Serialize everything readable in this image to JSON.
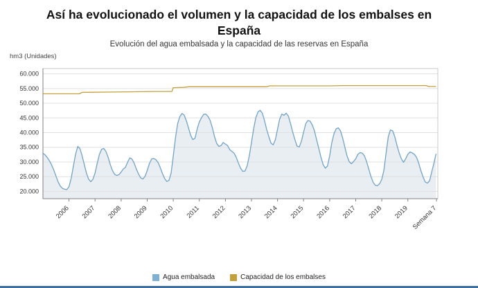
{
  "header": {
    "title": "Así ha evolucionado el volumen y la capacidad de los embalses en España",
    "subtitle": "Evolución del agua embalsada y la capacidad de las reservas en España",
    "y_unit_label": "hm3 (Unidades)"
  },
  "legend": [
    {
      "label": "Agua embalsada",
      "color": "#7fb1d4"
    },
    {
      "label": "Capacidad de los embalses",
      "color": "#c3a03c"
    }
  ],
  "colors": {
    "agua_line": "#6fa3c7",
    "agua_fill": "#e9eef3",
    "capacidad_line": "#c3a03c",
    "grid": "#e0e0e0",
    "frame": "#c9c9c9",
    "axis": "#808080",
    "tick_text": "#333333",
    "accent_bar": "#3a6ea5"
  },
  "chart_data": {
    "type": "line",
    "title": "Así ha evolucionado el volumen y la capacidad de los embalses en España",
    "subtitle": "Evolución del agua embalsada y la capacidad de las reservas en España",
    "ylabel": "hm3 (Unidades)",
    "grid": true,
    "legend_position": "bottom",
    "units_note": "values in thousands of hm3",
    "ylim": [
      17.5,
      61.8
    ],
    "xlim": [
      2005.0,
      2020.15
    ],
    "y_ticks": [
      {
        "v": 20,
        "label": "20.000"
      },
      {
        "v": 25,
        "label": "25.000"
      },
      {
        "v": 30,
        "label": "30.000"
      },
      {
        "v": 35,
        "label": "35.000"
      },
      {
        "v": 40,
        "label": "40.000"
      },
      {
        "v": 45,
        "label": "45.000"
      },
      {
        "v": 50,
        "label": "50.000"
      },
      {
        "v": 55,
        "label": "55.000"
      },
      {
        "v": 60,
        "label": "60.000"
      }
    ],
    "x_ticks": [
      {
        "v": 2006,
        "label": "2006"
      },
      {
        "v": 2007,
        "label": "2007"
      },
      {
        "v": 2008,
        "label": "2008"
      },
      {
        "v": 2009,
        "label": "2009"
      },
      {
        "v": 2010,
        "label": "2010"
      },
      {
        "v": 2011,
        "label": "2011"
      },
      {
        "v": 2012,
        "label": "2012"
      },
      {
        "v": 2013,
        "label": "2013"
      },
      {
        "v": 2014,
        "label": "2014"
      },
      {
        "v": 2015,
        "label": "2015"
      },
      {
        "v": 2016,
        "label": "2016"
      },
      {
        "v": 2017,
        "label": "2017"
      },
      {
        "v": 2018,
        "label": "2018"
      },
      {
        "v": 2019,
        "label": "2019"
      },
      {
        "v": 2020.1,
        "label": "Semana 7"
      }
    ],
    "series": [
      {
        "name": "Agua embalsada",
        "style": "area-line",
        "color": "#6fa3c7",
        "fill": "#e9eef3",
        "x_start": 2005.0,
        "x_step": 0.0833333,
        "values": [
          33.0,
          32.4,
          31.5,
          30.4,
          29.0,
          27.2,
          25.2,
          23.2,
          21.8,
          21.0,
          20.7,
          20.6,
          21.6,
          24.5,
          28.5,
          32.5,
          35.3,
          34.6,
          32.2,
          29.2,
          26.3,
          24.2,
          23.3,
          24.1,
          26.2,
          29.6,
          32.6,
          34.3,
          34.6,
          33.6,
          31.6,
          29.1,
          27.1,
          25.8,
          25.4,
          25.7,
          26.6,
          27.6,
          28.2,
          30.0,
          31.4,
          31.0,
          29.6,
          27.6,
          25.9,
          24.6,
          24.2,
          25.1,
          27.1,
          29.4,
          31.0,
          31.2,
          30.8,
          29.8,
          28.1,
          26.1,
          24.4,
          23.4,
          23.7,
          26.2,
          32.0,
          38.2,
          43.0,
          45.4,
          46.5,
          46.0,
          44.1,
          41.6,
          39.1,
          37.6,
          38.1,
          41.2,
          43.6,
          45.1,
          46.2,
          46.3,
          45.5,
          44.1,
          41.6,
          38.6,
          36.3,
          35.3,
          35.6,
          36.6,
          36.1,
          35.6,
          34.2,
          33.6,
          33.0,
          31.6,
          29.6,
          27.9,
          26.8,
          26.9,
          28.6,
          32.1,
          36.6,
          41.2,
          45.1,
          47.0,
          47.6,
          46.6,
          44.1,
          41.1,
          38.6,
          36.4,
          35.8,
          37.6,
          41.1,
          44.6,
          46.3,
          45.9,
          46.6,
          45.6,
          43.1,
          40.1,
          37.6,
          35.4,
          35.1,
          37.1,
          40.1,
          43.1,
          44.1,
          43.9,
          42.6,
          40.6,
          37.6,
          34.6,
          31.6,
          29.1,
          27.9,
          28.6,
          32.1,
          36.6,
          39.6,
          41.3,
          41.6,
          40.6,
          38.1,
          35.1,
          32.1,
          30.1,
          29.4,
          30.1,
          31.1,
          32.6,
          33.2,
          33.0,
          32.1,
          30.1,
          27.6,
          25.1,
          23.1,
          22.1,
          21.9,
          22.6,
          24.1,
          27.2,
          33.1,
          38.6,
          40.9,
          40.6,
          38.6,
          35.6,
          33.1,
          31.1,
          29.9,
          31.1,
          32.6,
          33.4,
          33.1,
          32.6,
          31.6,
          29.6,
          27.1,
          24.9,
          23.2,
          22.8,
          23.6,
          26.6,
          29.6,
          32.8
        ]
      },
      {
        "name": "Capacidad de los embalses",
        "style": "line",
        "color": "#c3a03c",
        "points": [
          [
            2005.0,
            53.2
          ],
          [
            2006.4,
            53.2
          ],
          [
            2006.5,
            53.7
          ],
          [
            2007.5,
            53.8
          ],
          [
            2008.5,
            53.9
          ],
          [
            2009.3,
            54.0
          ],
          [
            2009.95,
            54.0
          ],
          [
            2010.0,
            55.3
          ],
          [
            2010.4,
            55.4
          ],
          [
            2010.6,
            55.6
          ],
          [
            2011.0,
            55.6
          ],
          [
            2012.0,
            55.6
          ],
          [
            2013.0,
            55.6
          ],
          [
            2013.6,
            55.6
          ],
          [
            2013.7,
            55.9
          ],
          [
            2015.0,
            55.9
          ],
          [
            2016.0,
            55.9
          ],
          [
            2016.5,
            56.0
          ],
          [
            2018.0,
            56.0
          ],
          [
            2019.5,
            56.0
          ],
          [
            2019.7,
            56.0
          ],
          [
            2019.8,
            55.7
          ],
          [
            2020.08,
            55.7
          ]
        ]
      }
    ]
  }
}
